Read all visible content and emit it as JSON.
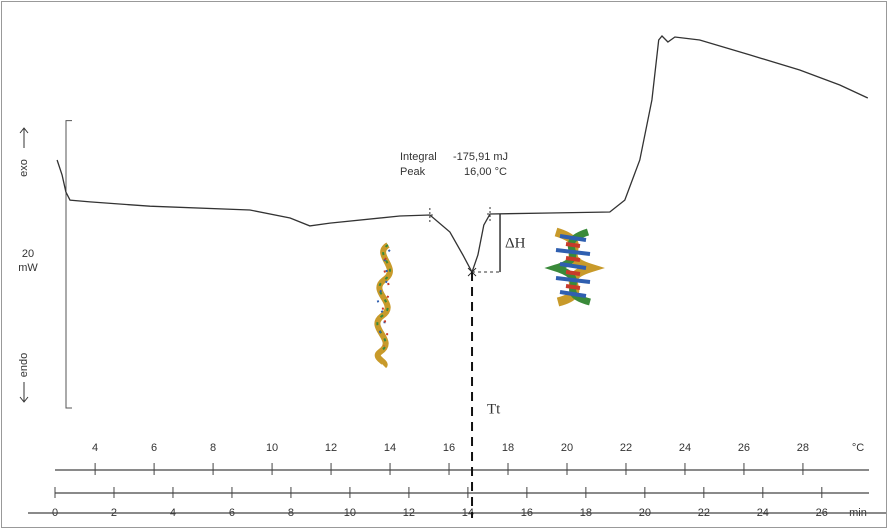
{
  "chart_data": {
    "type": "line",
    "x": [
      0.07,
      0.24,
      0.37,
      0.51,
      1.19,
      3.22,
      6.61,
      7.97,
      8.64,
      9.32,
      11.69,
      12.71,
      13.39,
      13.83,
      14.14,
      14.34,
      14.54,
      14.75,
      16.78,
      18.81,
      19.32,
      19.83,
      20.24,
      20.47,
      20.58,
      20.78,
      21.02,
      21.86,
      23.56,
      25.25,
      26.61,
      27.56
    ],
    "series": [
      {
        "color": "#333333",
        "values": [
          17.26,
          16.21,
          15.03,
          14.47,
          14.34,
          14.04,
          13.78,
          13.22,
          12.67,
          12.87,
          13.36,
          13.43,
          12.25,
          10.65,
          9.46,
          10.65,
          12.73,
          13.5,
          13.57,
          13.64,
          14.47,
          17.26,
          21.43,
          25.61,
          25.89,
          25.47,
          25.82,
          25.61,
          24.57,
          23.52,
          22.48,
          21.57
        ]
      }
    ],
    "xlim": [
      0,
      27.6
    ],
    "xticks": [
      0,
      2,
      4,
      6,
      8,
      10,
      12,
      14,
      16,
      18,
      20,
      22,
      24,
      26
    ],
    "x_unit": "min",
    "x2lim": [
      2.64,
      30.24
    ],
    "x2ticks": [
      4,
      6,
      8,
      10,
      12,
      14,
      16,
      18,
      20,
      22,
      24,
      26,
      28
    ],
    "x2_unit": "°C",
    "ylim": [
      0,
      27
    ],
    "scale_bar": {
      "value": 20,
      "label": [
        "20",
        "mW"
      ]
    },
    "y_up_label": "exo",
    "y_down_label": "endo",
    "annotations": {
      "integral_label": "Integral",
      "integral_value": "-175,91 mJ",
      "peak_label": "Peak",
      "peak_value": "16,00 °C",
      "enthalpy": "ΔH",
      "transition": "Tt"
    }
  }
}
